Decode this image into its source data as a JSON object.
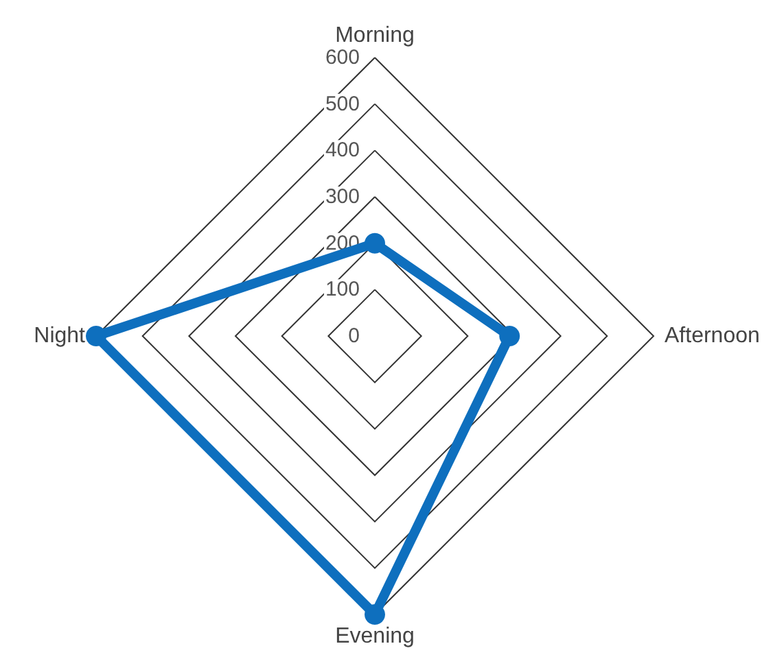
{
  "chart_data": {
    "type": "radar",
    "categories": [
      "Morning",
      "Afternoon",
      "Evening",
      "Night"
    ],
    "series": [
      {
        "color": "#0e6fbe",
        "values": [
          200,
          290,
          600,
          600
        ]
      }
    ],
    "ylim": [
      0,
      600
    ],
    "yticks": [
      0,
      100,
      200,
      300,
      400,
      500,
      600
    ],
    "grid": true,
    "marker": "circle",
    "line_style": "solid"
  }
}
